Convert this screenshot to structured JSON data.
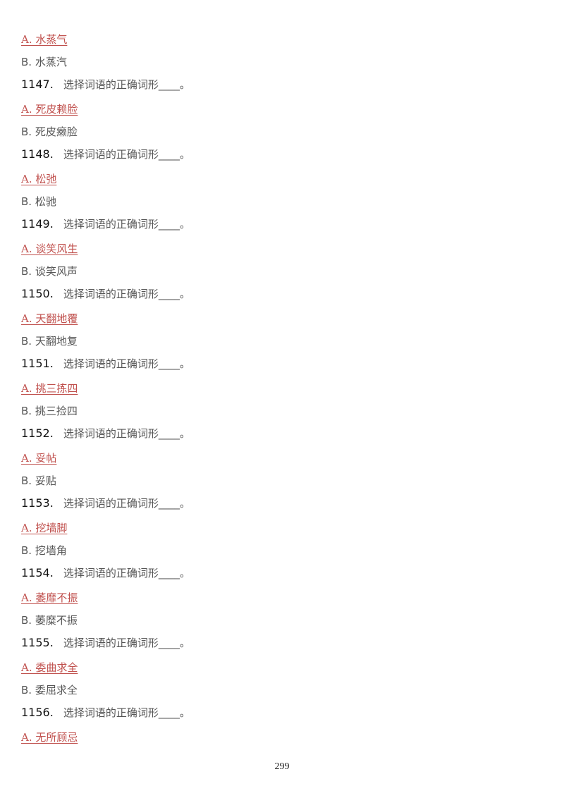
{
  "colors": {
    "correct": "#c0504d",
    "text": "#555555",
    "number": "#111111"
  },
  "question_text": "选择词语的正确词形____。",
  "items": [
    {
      "a": "A. 水蒸气",
      "b": "B. 水蒸汽",
      "q": "1147."
    },
    {
      "a": "A. 死皮赖脸",
      "b": "B. 死皮癞脸",
      "q": "1148."
    },
    {
      "a": "A. 松弛",
      "b": "B. 松驰",
      "q": "1149."
    },
    {
      "a": "A. 谈笑风生",
      "b": "B. 谈笑风声",
      "q": "1150."
    },
    {
      "a": "A. 天翻地覆",
      "b": "B. 天翻地复",
      "q": "1151."
    },
    {
      "a": "A. 挑三拣四",
      "b": "B. 挑三捡四",
      "q": "1152."
    },
    {
      "a": "A. 妥帖",
      "b": "B. 妥贴",
      "q": "1153."
    },
    {
      "a": "A. 挖墙脚",
      "b": "B. 挖墙角",
      "q": "1154."
    },
    {
      "a": "A. 萎靡不振",
      "b": "B. 萎糜不振",
      "q": "1155."
    },
    {
      "a": "A. 委曲求全",
      "b": "B. 委屈求全",
      "q": "1156."
    },
    {
      "a": "A. 无所顾忌"
    }
  ],
  "page_number": "299"
}
